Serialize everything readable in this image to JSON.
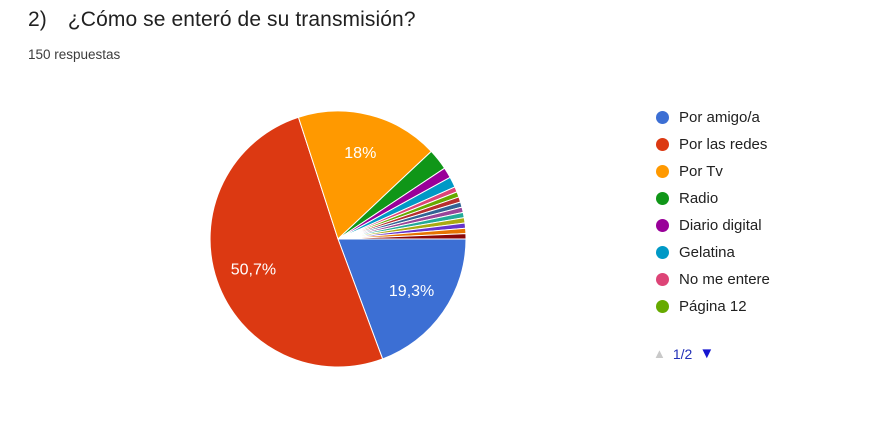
{
  "header": {
    "number": "2)",
    "question": "¿Cómo se enteró de su transmisión?",
    "subtitle": "150 respuestas"
  },
  "chart_data": {
    "type": "pie",
    "title": "2) ¿Cómo se enteró de su transmisión?",
    "subtitle": "150 respuestas",
    "total_responses": 150,
    "start_angle": "3-oclock, clockwise",
    "legend_position": "right",
    "slices": [
      {
        "label": "Por amigo/a",
        "count": 29,
        "pct": 19.3,
        "display": "19,3%",
        "color": "#3C6FD4"
      },
      {
        "label": "Por las redes",
        "count": 76,
        "pct": 50.7,
        "display": "50,7%",
        "color": "#DC3912"
      },
      {
        "label": "Por Tv",
        "count": 27,
        "pct": 18.0,
        "display": "18%",
        "color": "#FF9900"
      },
      {
        "label": "Radio",
        "count": 4,
        "pct": 2.7,
        "display": "",
        "color": "#109618"
      },
      {
        "label": "Diario digital",
        "count": 2,
        "pct": 1.3,
        "display": "",
        "color": "#990099"
      },
      {
        "label": "Gelatina",
        "count": 2,
        "pct": 1.3,
        "display": "",
        "color": "#0099C6"
      },
      {
        "label": "No me entere",
        "count": 1,
        "pct": 0.7,
        "display": "",
        "color": "#DD4477"
      },
      {
        "label": "Página 12",
        "count": 1,
        "pct": 0.7,
        "display": "",
        "color": "#66AA00"
      },
      {
        "label": "",
        "count": 1,
        "pct": 0.7,
        "display": "",
        "color": "#B82E2E"
      },
      {
        "label": "",
        "count": 1,
        "pct": 0.7,
        "display": "",
        "color": "#316395"
      },
      {
        "label": "",
        "count": 1,
        "pct": 0.7,
        "display": "",
        "color": "#994499"
      },
      {
        "label": "",
        "count": 1,
        "pct": 0.7,
        "display": "",
        "color": "#22AA99"
      },
      {
        "label": "",
        "count": 1,
        "pct": 0.7,
        "display": "",
        "color": "#AAAA11"
      },
      {
        "label": "",
        "count": 1,
        "pct": 0.7,
        "display": "",
        "color": "#6633CC"
      },
      {
        "label": "",
        "count": 1,
        "pct": 0.7,
        "display": "",
        "color": "#E67300"
      },
      {
        "label": "",
        "count": 1,
        "pct": 0.7,
        "display": "",
        "color": "#8B0707"
      }
    ]
  },
  "legend": {
    "visible_count": 8,
    "pager": {
      "up_glyph": "▲",
      "label": "1/2",
      "down_glyph": "▼",
      "up_color": "#C9C9C9",
      "label_color": "#2230B8",
      "down_color": "#1515D0"
    }
  }
}
